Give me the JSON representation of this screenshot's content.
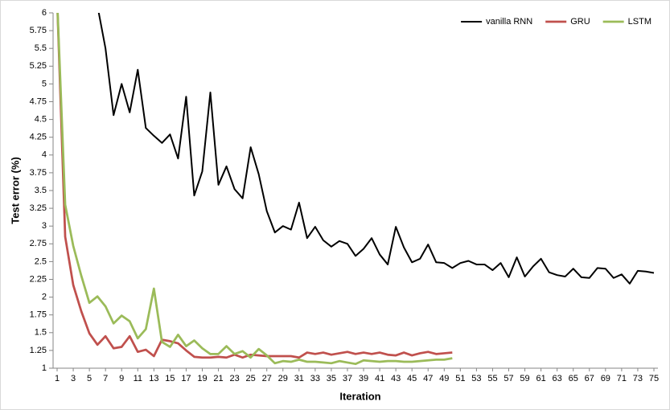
{
  "chart_data": {
    "type": "line",
    "x_label": "Iteration",
    "y_label": "Test error (%)",
    "x": [
      1,
      2,
      3,
      4,
      5,
      6,
      7,
      8,
      9,
      10,
      11,
      12,
      13,
      14,
      15,
      16,
      17,
      18,
      19,
      20,
      21,
      22,
      23,
      24,
      25,
      26,
      27,
      28,
      29,
      30,
      31,
      32,
      33,
      34,
      35,
      36,
      37,
      38,
      39,
      40,
      41,
      42,
      43,
      44,
      45,
      46,
      47,
      48,
      49,
      50,
      51,
      52,
      53,
      54,
      55,
      56,
      57,
      58,
      59,
      60,
      61,
      62,
      63,
      64,
      65,
      66,
      67,
      68,
      69,
      70,
      71,
      72,
      73,
      74,
      75
    ],
    "xlim": [
      0.5,
      75.5
    ],
    "xticks": [
      1,
      3,
      5,
      7,
      9,
      11,
      13,
      15,
      17,
      19,
      21,
      23,
      25,
      27,
      29,
      31,
      33,
      35,
      37,
      39,
      41,
      43,
      45,
      47,
      49,
      51,
      53,
      55,
      57,
      59,
      61,
      63,
      65,
      67,
      69,
      71,
      73,
      75
    ],
    "ylim": [
      1,
      6
    ],
    "yticks": [
      1,
      1.25,
      1.5,
      1.75,
      2,
      2.25,
      2.5,
      2.75,
      3,
      3.25,
      3.5,
      3.75,
      4,
      4.25,
      4.5,
      4.75,
      5,
      5.25,
      5.5,
      5.75,
      6
    ],
    "legend": "top-right",
    "series": [
      {
        "name": "vanilla RNN",
        "color": "#000000",
        "values": [
          null,
          null,
          null,
          null,
          null,
          6.1,
          5.5,
          4.56,
          5.0,
          4.6,
          5.2,
          4.38,
          4.27,
          4.17,
          4.29,
          3.95,
          4.82,
          3.43,
          3.77,
          4.88,
          3.58,
          3.84,
          3.52,
          3.39,
          4.11,
          3.73,
          3.21,
          2.91,
          3.0,
          2.95,
          3.33,
          2.83,
          2.99,
          2.8,
          2.71,
          2.79,
          2.75,
          2.58,
          2.68,
          2.83,
          2.6,
          2.46,
          2.99,
          2.7,
          2.49,
          2.54,
          2.74,
          2.49,
          2.48,
          2.41,
          2.48,
          2.51,
          2.46,
          2.46,
          2.38,
          2.48,
          2.28,
          2.56,
          2.29,
          2.43,
          2.54,
          2.35,
          2.31,
          2.29,
          2.4,
          2.28,
          2.27,
          2.41,
          2.4,
          2.27,
          2.32,
          2.19,
          2.37,
          2.36,
          2.34
        ]
      },
      {
        "name": "GRU",
        "color": "#c0504d",
        "values": [
          6.2,
          2.85,
          2.17,
          1.8,
          1.49,
          1.33,
          1.45,
          1.28,
          1.3,
          1.45,
          1.23,
          1.26,
          1.17,
          1.4,
          1.38,
          1.35,
          1.25,
          1.16,
          1.15,
          1.15,
          1.16,
          1.15,
          1.19,
          1.15,
          1.19,
          1.18,
          1.17,
          1.17,
          1.17,
          1.17,
          1.15,
          1.22,
          1.2,
          1.22,
          1.19,
          1.21,
          1.23,
          1.2,
          1.22,
          1.2,
          1.22,
          1.19,
          1.18,
          1.22,
          1.18,
          1.21,
          1.23,
          1.2,
          1.21,
          1.22,
          null,
          null,
          null,
          null,
          null,
          null,
          null,
          null,
          null,
          null,
          null,
          null,
          null,
          null,
          null,
          null,
          null,
          null,
          null,
          null,
          null,
          null,
          null,
          null,
          null
        ]
      },
      {
        "name": "LSTM",
        "color": "#9bbb59",
        "values": [
          6.2,
          3.3,
          2.72,
          2.3,
          1.92,
          2.01,
          1.87,
          1.63,
          1.74,
          1.66,
          1.42,
          1.55,
          2.12,
          1.37,
          1.3,
          1.47,
          1.31,
          1.39,
          1.28,
          1.2,
          1.2,
          1.31,
          1.2,
          1.24,
          1.15,
          1.27,
          1.18,
          1.07,
          1.1,
          1.09,
          1.12,
          1.09,
          1.09,
          1.08,
          1.07,
          1.1,
          1.08,
          1.06,
          1.11,
          1.1,
          1.09,
          1.1,
          1.1,
          1.09,
          1.09,
          1.1,
          1.11,
          1.12,
          1.12,
          1.14,
          null,
          null,
          null,
          null,
          null,
          null,
          null,
          null,
          null,
          null,
          null,
          null,
          null,
          null,
          null,
          null,
          null,
          null,
          null,
          null,
          null,
          null,
          null,
          null,
          null
        ]
      }
    ]
  }
}
